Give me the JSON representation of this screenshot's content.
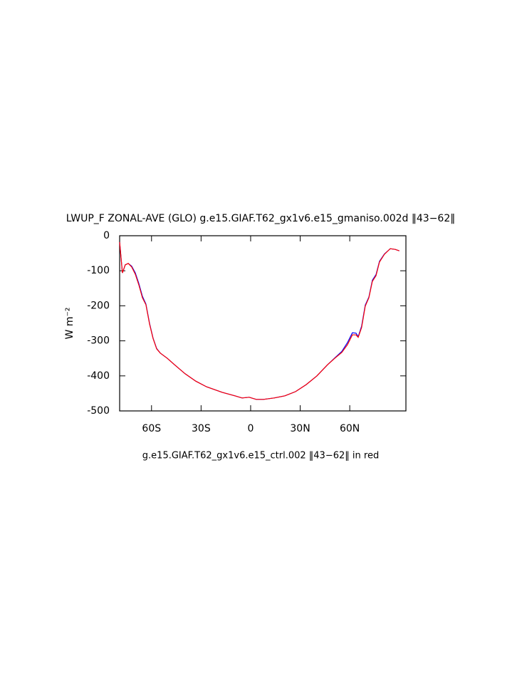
{
  "chart_data": {
    "type": "line",
    "title": "LWUP_F ZONAL-AVE (GLO) g.e15.GIAF.T62_gx1v6.e15_gmaniso.002d ‖43−62‖",
    "y_label": "W m⁻²",
    "x_caption": "g.e15.GIAF.T62_gx1v6.e15_ctrl.002 ‖43−62‖ in red",
    "x": [
      -79.3,
      -77.6,
      -75.9,
      -74.1,
      -72.0,
      -69.8,
      -67.7,
      -65.5,
      -63.4,
      -61.2,
      -59.1,
      -56.9,
      -54.7,
      -50.4,
      -46.1,
      -39.7,
      -33.2,
      -26.7,
      -17.2,
      -9.5,
      -5.2,
      -0.9,
      3.4,
      7.8,
      14.2,
      20.7,
      27.2,
      33.6,
      40.1,
      46.6,
      50.9,
      55.2,
      58.6,
      61.6,
      63.8,
      65.1,
      67.2,
      69.4,
      71.6,
      73.7,
      75.9,
      78.0,
      81.0,
      84.5,
      87.5,
      90.0
    ],
    "series": [
      {
        "name": "g.e15.GIAF.T62_gx1v6.e15_gmaniso.002d",
        "color": "#0000ff",
        "values": [
          -18,
          -106,
          -83,
          -79,
          -87,
          -106,
          -136,
          -173,
          -195,
          -250,
          -292,
          -322,
          -335,
          -350,
          -368,
          -394,
          -415,
          -431,
          -447,
          -457,
          -463,
          -461,
          -467,
          -467,
          -463,
          -457,
          -445,
          -425,
          -400,
          -368,
          -349,
          -330,
          -305,
          -277,
          -278,
          -288,
          -258,
          -198,
          -175,
          -127,
          -111,
          -73,
          -52,
          -37,
          -39,
          -43
        ]
      },
      {
        "name": "g.e15.GIAF.T62_gx1v6.e15_ctrl.002",
        "color": "#ff0000",
        "values": [
          -18,
          -106,
          -83,
          -79,
          -89,
          -110,
          -140,
          -177,
          -197,
          -252,
          -293,
          -323,
          -335,
          -350,
          -368,
          -394,
          -415,
          -431,
          -447,
          -457,
          -463,
          -461,
          -467,
          -467,
          -463,
          -457,
          -445,
          -425,
          -400,
          -368,
          -350,
          -333,
          -311,
          -283,
          -283,
          -290,
          -262,
          -201,
          -177,
          -130,
          -114,
          -75,
          -53,
          -37,
          -39,
          -43
        ]
      }
    ],
    "xlim": [
      -79.3,
      94
    ],
    "ylim": [
      -500,
      0
    ],
    "xticks": [
      {
        "value": -60,
        "label": "60S"
      },
      {
        "value": -30,
        "label": "30S"
      },
      0,
      {
        "value": 30,
        "label": "30N"
      },
      {
        "value": 60,
        "label": "60N"
      }
    ],
    "yticks": [
      0,
      -100,
      -200,
      -300,
      -400,
      -500
    ]
  }
}
